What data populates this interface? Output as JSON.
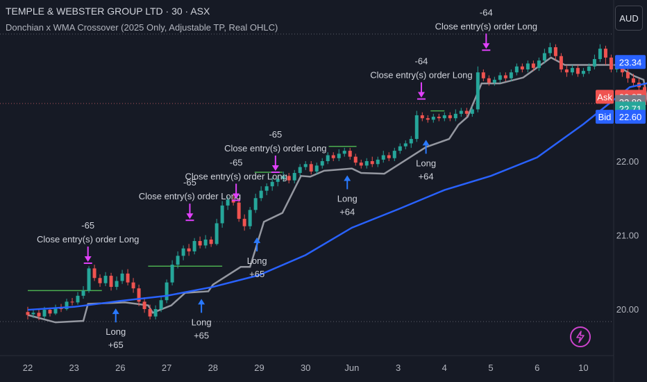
{
  "header": {
    "title": "TEMPLE & WEBSTER GROUP LTD · 30 · ASX",
    "subtitle": "Donchian x WMA Crossover (2025 Only, Adjustable TP, Real OHLC)",
    "currency": "AUD"
  },
  "colors": {
    "background": "#161a25",
    "up": "#26a69a",
    "down": "#ef5350",
    "wma": "#2962ff",
    "donchian": "#9598a1",
    "take_profit": "#4caf50",
    "close_marker": "#e040fb",
    "entry_marker": "#2979ff"
  },
  "icons": {
    "lightning": "lightning-icon"
  },
  "chart_data": {
    "type": "candlestick",
    "title": "TEMPLE & WEBSTER GROUP LTD · 30 · ASX",
    "x_ticks": [
      "22",
      "23",
      "26",
      "27",
      "28",
      "29",
      "30",
      "Jun",
      "3",
      "4",
      "5",
      "6",
      "10"
    ],
    "y_ticks": [
      "20.00",
      "21.00",
      "22.00"
    ],
    "ylim": [
      19.45,
      23.6
    ],
    "price_labels": [
      {
        "label": "",
        "value": "23.34",
        "color": "#2962ff"
      },
      {
        "label": "Ask",
        "value": "22.87",
        "color": "#ef5350"
      },
      {
        "label": "",
        "value": "22.80",
        "color": "#787b86"
      },
      {
        "label": "",
        "value": "22.71",
        "color": "#26a69a"
      },
      {
        "label": "Bid",
        "value": "22.60",
        "color": "#2962ff"
      }
    ],
    "wma": [
      [
        0,
        19.99
      ],
      [
        1,
        20.03
      ],
      [
        2,
        20.11
      ],
      [
        3,
        20.18
      ],
      [
        4,
        20.3
      ],
      [
        5,
        20.46
      ],
      [
        6,
        20.73
      ],
      [
        7,
        21.1
      ],
      [
        8,
        21.35
      ],
      [
        9,
        21.61
      ],
      [
        10,
        21.8
      ],
      [
        11,
        22.05
      ],
      [
        12,
        22.5
      ],
      [
        13,
        23.0
      ],
      [
        13.7,
        23.1
      ],
      [
        14.2,
        23.01
      ]
    ],
    "donchian": [
      [
        0,
        19.92
      ],
      [
        0.6,
        19.82
      ],
      [
        1.2,
        19.84
      ],
      [
        1.3,
        20.07
      ],
      [
        2.1,
        20.09
      ],
      [
        2.6,
        20.05
      ],
      [
        2.7,
        19.95
      ],
      [
        3.1,
        20.05
      ],
      [
        3.4,
        20.22
      ],
      [
        3.9,
        20.24
      ],
      [
        4.0,
        20.33
      ],
      [
        4.6,
        20.57
      ],
      [
        4.8,
        20.57
      ],
      [
        5.1,
        21.18
      ],
      [
        5.5,
        21.3
      ],
      [
        5.9,
        21.8
      ],
      [
        6.1,
        21.79
      ],
      [
        6.4,
        21.87
      ],
      [
        7.0,
        21.9
      ],
      [
        7.2,
        21.84
      ],
      [
        7.7,
        21.83
      ],
      [
        8.0,
        21.95
      ],
      [
        8.6,
        22.19
      ],
      [
        9.1,
        22.3
      ],
      [
        9.3,
        22.49
      ],
      [
        9.5,
        22.6
      ],
      [
        9.8,
        23.05
      ],
      [
        10.2,
        23.05
      ],
      [
        10.7,
        23.13
      ],
      [
        11.3,
        23.4
      ],
      [
        11.6,
        23.3
      ],
      [
        12.2,
        23.3
      ],
      [
        12.7,
        23.3
      ],
      [
        13.1,
        23.15
      ],
      [
        13.3,
        23.1
      ],
      [
        13.4,
        22.76
      ],
      [
        13.8,
        22.72
      ]
    ],
    "candles": [
      [
        0.0,
        19.96,
        19.92,
        20.03,
        19.86
      ],
      [
        0.12,
        19.93,
        19.95,
        20.0,
        19.88
      ],
      [
        0.24,
        19.95,
        19.9,
        19.99,
        19.85
      ],
      [
        0.36,
        19.9,
        19.99,
        20.03,
        19.87
      ],
      [
        0.48,
        19.99,
        19.94,
        20.02,
        19.9
      ],
      [
        0.6,
        19.94,
        20.02,
        20.06,
        19.92
      ],
      [
        0.72,
        20.02,
        20.0,
        20.07,
        19.96
      ],
      [
        0.84,
        20.0,
        20.1,
        20.14,
        19.98
      ],
      [
        0.96,
        20.1,
        20.09,
        20.15,
        20.05
      ],
      [
        1.08,
        20.09,
        20.18,
        20.23,
        20.06
      ],
      [
        1.2,
        20.18,
        20.25,
        20.31,
        20.14
      ],
      [
        1.32,
        20.25,
        20.55,
        20.58,
        20.22
      ],
      [
        1.44,
        20.55,
        20.42,
        20.6,
        20.38
      ],
      [
        1.56,
        20.42,
        20.35,
        20.47,
        20.3
      ],
      [
        1.68,
        20.35,
        20.45,
        20.5,
        20.31
      ],
      [
        1.8,
        20.45,
        20.3,
        20.49,
        20.25
      ],
      [
        1.92,
        20.3,
        20.38,
        20.44,
        20.26
      ],
      [
        2.04,
        20.38,
        20.48,
        20.53,
        20.34
      ],
      [
        2.16,
        20.48,
        20.36,
        20.54,
        20.32
      ],
      [
        2.28,
        20.36,
        20.28,
        20.42,
        20.22
      ],
      [
        2.4,
        20.28,
        20.1,
        20.33,
        20.04
      ],
      [
        2.52,
        20.1,
        20.0,
        20.16,
        19.95
      ],
      [
        2.64,
        20.0,
        19.9,
        20.06,
        19.86
      ],
      [
        2.76,
        19.9,
        20.0,
        20.05,
        19.86
      ],
      [
        2.88,
        20.0,
        20.12,
        20.16,
        19.96
      ],
      [
        3.0,
        20.12,
        20.36,
        20.4,
        20.08
      ],
      [
        3.12,
        20.36,
        20.6,
        20.66,
        20.32
      ],
      [
        3.24,
        20.6,
        20.72,
        20.78,
        20.55
      ],
      [
        3.36,
        20.72,
        20.82,
        20.86,
        20.66
      ],
      [
        3.48,
        20.82,
        20.78,
        20.88,
        20.72
      ],
      [
        3.6,
        20.78,
        20.92,
        20.96,
        20.74
      ],
      [
        3.72,
        20.92,
        20.86,
        20.98,
        20.82
      ],
      [
        3.84,
        20.86,
        20.94,
        21.0,
        20.82
      ],
      [
        3.96,
        20.94,
        20.88,
        20.98,
        20.84
      ],
      [
        4.08,
        20.88,
        21.16,
        21.22,
        20.86
      ],
      [
        4.2,
        21.16,
        21.4,
        21.46,
        21.1
      ],
      [
        4.32,
        21.4,
        21.48,
        21.52,
        21.34
      ],
      [
        4.44,
        21.48,
        21.44,
        21.54,
        21.4
      ],
      [
        4.56,
        21.44,
        21.22,
        21.5,
        21.18
      ],
      [
        4.68,
        21.22,
        21.12,
        21.28,
        21.06
      ],
      [
        4.8,
        21.12,
        21.34,
        21.38,
        21.08
      ],
      [
        4.92,
        21.34,
        21.5,
        21.56,
        21.3
      ],
      [
        5.04,
        21.5,
        21.6,
        21.66,
        21.46
      ],
      [
        5.16,
        21.6,
        21.66,
        21.7,
        21.54
      ],
      [
        5.28,
        21.66,
        21.72,
        21.78,
        21.6
      ],
      [
        5.4,
        21.72,
        21.76,
        21.8,
        21.66
      ],
      [
        5.52,
        21.76,
        21.8,
        21.86,
        21.72
      ],
      [
        5.64,
        21.8,
        21.74,
        21.84,
        21.7
      ],
      [
        5.76,
        21.74,
        21.84,
        21.88,
        21.7
      ],
      [
        5.88,
        21.84,
        21.92,
        21.96,
        21.8
      ],
      [
        6.0,
        21.92,
        21.96,
        22.0,
        21.88
      ],
      [
        6.12,
        21.96,
        21.86,
        22.0,
        21.82
      ],
      [
        6.24,
        21.86,
        21.94,
        21.98,
        21.82
      ],
      [
        6.36,
        21.94,
        22.0,
        22.04,
        21.9
      ],
      [
        6.48,
        22.0,
        22.08,
        22.12,
        21.96
      ],
      [
        6.6,
        22.08,
        22.04,
        22.12,
        22.0
      ],
      [
        6.72,
        22.04,
        22.1,
        22.16,
        22.0
      ],
      [
        6.84,
        22.1,
        22.14,
        22.18,
        22.06
      ],
      [
        6.96,
        22.14,
        22.06,
        22.18,
        22.02
      ],
      [
        7.08,
        22.06,
        21.98,
        22.1,
        21.94
      ],
      [
        7.2,
        21.98,
        21.94,
        22.02,
        21.9
      ],
      [
        7.32,
        21.94,
        22.0,
        22.04,
        21.9
      ],
      [
        7.44,
        22.0,
        21.96,
        22.06,
        21.92
      ],
      [
        7.56,
        21.96,
        22.02,
        22.06,
        21.92
      ],
      [
        7.68,
        22.02,
        22.08,
        22.14,
        21.98
      ],
      [
        7.8,
        22.08,
        22.04,
        22.12,
        22.0
      ],
      [
        7.92,
        22.04,
        22.14,
        22.18,
        22.0
      ],
      [
        8.04,
        22.14,
        22.2,
        22.24,
        22.1
      ],
      [
        8.16,
        22.2,
        22.24,
        22.28,
        22.16
      ],
      [
        8.28,
        22.24,
        22.3,
        22.34,
        22.18
      ],
      [
        8.4,
        22.3,
        22.62,
        22.68,
        22.26
      ],
      [
        8.52,
        22.62,
        22.58,
        22.66,
        22.54
      ],
      [
        8.64,
        22.58,
        22.56,
        22.62,
        22.52
      ],
      [
        8.76,
        22.56,
        22.6,
        22.64,
        22.52
      ],
      [
        8.88,
        22.6,
        22.58,
        22.64,
        22.54
      ],
      [
        9.0,
        22.58,
        22.62,
        22.66,
        22.54
      ],
      [
        9.12,
        22.62,
        22.58,
        22.66,
        22.54
      ],
      [
        9.24,
        22.58,
        22.64,
        22.7,
        22.54
      ],
      [
        9.36,
        22.64,
        22.68,
        22.72,
        22.6
      ],
      [
        9.48,
        22.68,
        22.64,
        22.72,
        22.6
      ],
      [
        9.6,
        22.64,
        22.7,
        22.74,
        22.6
      ],
      [
        9.72,
        22.7,
        23.2,
        23.28,
        22.66
      ],
      [
        9.84,
        23.2,
        23.12,
        23.24,
        23.08
      ],
      [
        9.96,
        23.12,
        23.06,
        23.16,
        23.02
      ],
      [
        10.08,
        23.06,
        23.1,
        23.14,
        23.02
      ],
      [
        10.2,
        23.1,
        23.16,
        23.2,
        23.06
      ],
      [
        10.32,
        23.16,
        23.12,
        23.2,
        23.08
      ],
      [
        10.44,
        23.12,
        23.2,
        23.24,
        23.08
      ],
      [
        10.56,
        23.2,
        23.28,
        23.32,
        23.16
      ],
      [
        10.68,
        23.28,
        23.24,
        23.32,
        23.2
      ],
      [
        10.8,
        23.24,
        23.32,
        23.36,
        23.2
      ],
      [
        10.92,
        23.32,
        23.26,
        23.36,
        23.22
      ],
      [
        11.04,
        23.26,
        23.36,
        23.4,
        23.22
      ],
      [
        11.16,
        23.36,
        23.46,
        23.52,
        23.32
      ],
      [
        11.28,
        23.46,
        23.54,
        23.6,
        23.42
      ],
      [
        11.4,
        23.54,
        23.42,
        23.58,
        23.36
      ],
      [
        11.52,
        23.42,
        23.24,
        23.46,
        23.2
      ],
      [
        11.64,
        23.24,
        23.2,
        23.3,
        23.14
      ],
      [
        11.76,
        23.2,
        23.26,
        23.3,
        23.16
      ],
      [
        11.88,
        23.26,
        23.18,
        23.3,
        23.14
      ],
      [
        12.0,
        23.18,
        23.22,
        23.26,
        23.14
      ],
      [
        12.12,
        23.22,
        23.28,
        23.32,
        23.18
      ],
      [
        12.24,
        23.28,
        23.38,
        23.44,
        23.24
      ],
      [
        12.36,
        23.38,
        23.52,
        23.58,
        23.34
      ],
      [
        12.48,
        23.52,
        23.4,
        23.56,
        23.3
      ],
      [
        12.6,
        23.4,
        23.24,
        23.44,
        23.2
      ],
      [
        12.72,
        23.24,
        23.3,
        23.36,
        23.2
      ],
      [
        12.84,
        23.3,
        23.2,
        23.38,
        23.14
      ],
      [
        12.96,
        23.2,
        23.12,
        23.26,
        23.06
      ],
      [
        13.08,
        23.12,
        23.06,
        23.18,
        23.0
      ],
      [
        13.2,
        23.06,
        23.0,
        23.12,
        22.96
      ],
      [
        13.32,
        23.0,
        22.76,
        23.04,
        22.7
      ],
      [
        13.44,
        22.76,
        22.72,
        22.84,
        22.66
      ],
      [
        13.56,
        22.72,
        22.76,
        22.82,
        22.68
      ],
      [
        13.68,
        22.76,
        22.72,
        22.8,
        22.66
      ],
      [
        13.8,
        22.72,
        22.7,
        22.78,
        22.62
      ]
    ],
    "tp_segments": [
      [
        0.0,
        1.6,
        20.25
      ],
      [
        2.6,
        4.2,
        20.58
      ],
      [
        4.9,
        5.5,
        21.85
      ],
      [
        6.5,
        7.1,
        22.2
      ],
      [
        8.7,
        9.0,
        22.68
      ]
    ],
    "trades": [
      {
        "type": "entry",
        "x": 1.9,
        "price": 19.82,
        "label": "Long",
        "qty": "+65"
      },
      {
        "type": "close",
        "x": 1.3,
        "price": 20.62,
        "label": "Close entry(s) order Long",
        "qty": "-65"
      },
      {
        "type": "entry",
        "x": 3.75,
        "price": 19.95,
        "label": "Long",
        "qty": "+65"
      },
      {
        "type": "close",
        "x": 3.5,
        "price": 21.2,
        "label": "Close entry(s) order Long",
        "qty": "-65"
      },
      {
        "type": "entry",
        "x": 4.95,
        "price": 20.78,
        "label": "Long",
        "qty": "+65"
      },
      {
        "type": "close",
        "x": 4.5,
        "price": 21.47,
        "label": "Close entry(s) order Long",
        "qty": "-65"
      },
      {
        "type": "close",
        "x": 5.35,
        "price": 21.85,
        "label": "Close entry(s) order Long",
        "qty": "-65"
      },
      {
        "type": "entry",
        "x": 6.9,
        "price": 21.62,
        "label": "Long",
        "qty": "+64"
      },
      {
        "type": "close",
        "x": 8.5,
        "price": 22.84,
        "label": "Close entry(s) order Long",
        "qty": "-64"
      },
      {
        "type": "entry",
        "x": 8.6,
        "price": 22.1,
        "label": "Long",
        "qty": "+64"
      },
      {
        "type": "close",
        "x": 9.9,
        "price": 23.5,
        "label": "Close entry(s) order Long",
        "qty": "-64"
      }
    ],
    "grid": false
  }
}
